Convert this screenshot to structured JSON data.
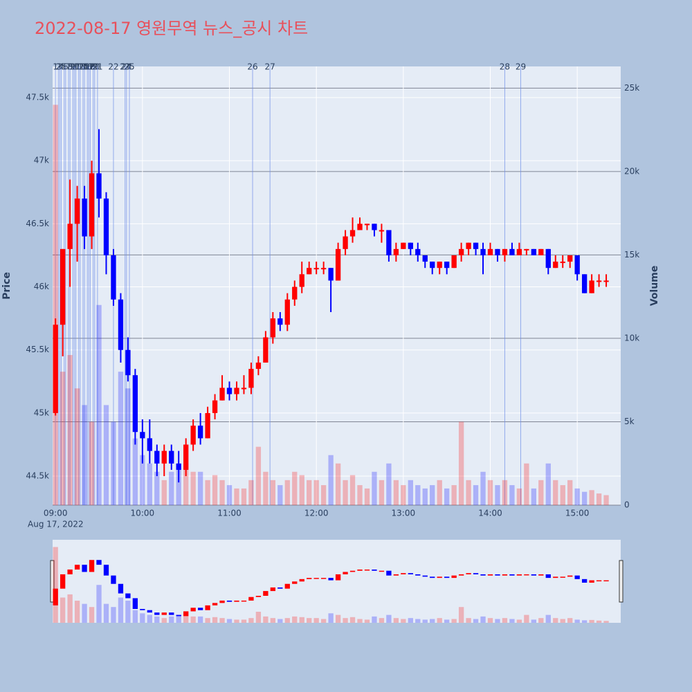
{
  "chart_data": {
    "type": "candlestick",
    "title": "2022-08-17 영원무역 뉴스_공시 차트",
    "y_title": "Price",
    "y2_title": "Volume",
    "x_date_label": "Aug 17, 2022",
    "xlim": [
      "08:58",
      "15:30"
    ],
    "xticks": [
      "09:00",
      "10:00",
      "11:00",
      "12:00",
      "13:00",
      "14:00",
      "15:00"
    ],
    "ylim": [
      44270,
      47747
    ],
    "yticks": [
      {
        "value": 44500,
        "label": "44.5k"
      },
      {
        "value": 45000,
        "label": "45k"
      },
      {
        "value": 45500,
        "label": "45.5k"
      },
      {
        "value": 46000,
        "label": "46k"
      },
      {
        "value": 46500,
        "label": "46.5k"
      },
      {
        "value": 47000,
        "label": "47k"
      },
      {
        "value": 47500,
        "label": "47.5k"
      }
    ],
    "y2lim": [
      0,
      26300
    ],
    "y2ticks": [
      0,
      {
        "value": 5000,
        "label": "5k"
      },
      {
        "value": 10000,
        "label": "10k"
      },
      {
        "value": 15000,
        "label": "15k"
      },
      {
        "value": 20000,
        "label": "20k"
      },
      {
        "value": 25000,
        "label": "25k"
      }
    ],
    "up_color": "#ff0000",
    "down_color": "#0000ff",
    "x": [
      "09:00",
      "09:05",
      "09:10",
      "09:15",
      "09:20",
      "09:25",
      "09:30",
      "09:35",
      "09:40",
      "09:45",
      "09:50",
      "09:55",
      "10:00",
      "10:05",
      "10:10",
      "10:15",
      "10:20",
      "10:25",
      "10:30",
      "10:35",
      "10:40",
      "10:45",
      "10:50",
      "10:55",
      "11:00",
      "11:05",
      "11:10",
      "11:15",
      "11:20",
      "11:25",
      "11:30",
      "11:35",
      "11:40",
      "11:45",
      "11:50",
      "11:55",
      "12:00",
      "12:05",
      "12:10",
      "12:15",
      "12:20",
      "12:25",
      "12:30",
      "12:35",
      "12:40",
      "12:45",
      "12:50",
      "12:55",
      "13:00",
      "13:05",
      "13:10",
      "13:15",
      "13:20",
      "13:25",
      "13:30",
      "13:35",
      "13:40",
      "13:45",
      "13:50",
      "13:55",
      "14:00",
      "14:05",
      "14:10",
      "14:15",
      "14:20",
      "14:25",
      "14:30",
      "14:35",
      "14:40",
      "14:45",
      "14:50",
      "14:55",
      "15:00",
      "15:05",
      "15:10",
      "15:15",
      "15:20"
    ],
    "open": [
      45000,
      45700,
      46300,
      46500,
      46700,
      46400,
      46900,
      46700,
      46250,
      45900,
      45500,
      45300,
      44850,
      44800,
      44700,
      44600,
      44700,
      44600,
      44550,
      44750,
      44900,
      44800,
      45000,
      45100,
      45200,
      45150,
      45200,
      45200,
      45350,
      45400,
      45600,
      45750,
      45700,
      45900,
      46000,
      46100,
      46150,
      46150,
      46150,
      46050,
      46300,
      46400,
      46450,
      46500,
      46500,
      46450,
      46450,
      46250,
      46300,
      46350,
      46300,
      46250,
      46200,
      46150,
      46200,
      46150,
      46250,
      46300,
      46350,
      46300,
      46250,
      46300,
      46250,
      46300,
      46250,
      46300,
      46300,
      46250,
      46300,
      46150,
      46200,
      46200,
      46250,
      46100,
      45950,
      46050,
      46050
    ],
    "high": [
      45750,
      46300,
      46850,
      46800,
      46800,
      47000,
      47250,
      46750,
      46300,
      45950,
      45600,
      45350,
      44950,
      44950,
      44750,
      44750,
      44750,
      44700,
      44800,
      44950,
      45000,
      45050,
      45150,
      45300,
      45250,
      45250,
      45300,
      45400,
      45450,
      45650,
      45800,
      45800,
      45950,
      46050,
      46200,
      46200,
      46200,
      46200,
      46150,
      46350,
      46450,
      46550,
      46550,
      46500,
      46500,
      46500,
      46450,
      46350,
      46350,
      46350,
      46350,
      46250,
      46200,
      46200,
      46200,
      46250,
      46350,
      46350,
      46350,
      46350,
      46350,
      46300,
      46300,
      46350,
      46350,
      46300,
      46300,
      46300,
      46300,
      46250,
      46250,
      46250,
      46250,
      46100,
      46100,
      46100,
      46100
    ],
    "low": [
      44980,
      45450,
      46000,
      46200,
      46300,
      46300,
      46550,
      46100,
      45850,
      45400,
      45250,
      44750,
      44600,
      44600,
      44500,
      44500,
      44550,
      44450,
      44500,
      44700,
      44750,
      44800,
      44950,
      45100,
      45100,
      45100,
      45150,
      45150,
      45300,
      45400,
      45550,
      45650,
      45650,
      45850,
      45950,
      46100,
      46100,
      46100,
      45800,
      46050,
      46250,
      46350,
      46450,
      46450,
      46400,
      46350,
      46200,
      46200,
      46300,
      46250,
      46200,
      46150,
      46100,
      46100,
      46100,
      46150,
      46200,
      46250,
      46250,
      46100,
      46250,
      46200,
      46200,
      46250,
      46250,
      46250,
      46250,
      46250,
      46100,
      46150,
      46150,
      46150,
      46050,
      45950,
      45950,
      46000,
      46000
    ],
    "close": [
      45700,
      46300,
      46500,
      46700,
      46400,
      46900,
      46700,
      46250,
      45900,
      45500,
      45300,
      44850,
      44800,
      44700,
      44600,
      44700,
      44600,
      44550,
      44750,
      44900,
      44800,
      45000,
      45100,
      45200,
      45150,
      45200,
      45200,
      45350,
      45400,
      45600,
      45750,
      45700,
      45900,
      46000,
      46100,
      46150,
      46150,
      46150,
      46050,
      46300,
      46400,
      46450,
      46500,
      46500,
      46450,
      46450,
      46250,
      46300,
      46350,
      46300,
      46250,
      46200,
      46150,
      46200,
      46150,
      46250,
      46300,
      46350,
      46300,
      46250,
      46300,
      46250,
      46300,
      46250,
      46300,
      46300,
      46250,
      46300,
      46150,
      46200,
      46200,
      46250,
      46100,
      45950,
      46050,
      46050,
      46050
    ],
    "volume": [
      24000,
      8000,
      9000,
      7000,
      6000,
      5000,
      12000,
      6000,
      5000,
      8000,
      7000,
      4000,
      3000,
      2500,
      2000,
      1500,
      2000,
      2500,
      2500,
      2000,
      2000,
      1500,
      1800,
      1500,
      1200,
      1000,
      1000,
      1500,
      3500,
      2000,
      1500,
      1200,
      1500,
      2000,
      1800,
      1500,
      1500,
      1200,
      3000,
      2500,
      1500,
      1800,
      1200,
      1000,
      2000,
      1500,
      2500,
      1500,
      1200,
      1500,
      1200,
      1000,
      1200,
      1500,
      1000,
      1200,
      5000,
      1500,
      1200,
      2000,
      1500,
      1200,
      1500,
      1200,
      1000,
      2500,
      1000,
      1500,
      2500,
      1500,
      1200,
      1500,
      1000,
      800,
      900,
      700,
      600
    ],
    "news_markers": [
      {
        "label": "1",
        "x": "09:00"
      },
      {
        "label": "2",
        "x": "09:02"
      },
      {
        "label": "3",
        "x": "09:03"
      },
      {
        "label": "4",
        "x": "09:04"
      },
      {
        "label": "5",
        "x": "09:06"
      },
      {
        "label": "6",
        "x": "09:07"
      },
      {
        "label": "7",
        "x": "09:09"
      },
      {
        "label": "8",
        "x": "09:10"
      },
      {
        "label": "9",
        "x": "09:12"
      },
      {
        "label": "10",
        "x": "09:13"
      },
      {
        "label": "11",
        "x": "09:14"
      },
      {
        "label": "12",
        "x": "09:16"
      },
      {
        "label": "13",
        "x": "09:17"
      },
      {
        "label": "14",
        "x": "09:19"
      },
      {
        "label": "15",
        "x": "09:20"
      },
      {
        "label": "16",
        "x": "09:22"
      },
      {
        "label": "17",
        "x": "09:23"
      },
      {
        "label": "18",
        "x": "09:24"
      },
      {
        "label": "19",
        "x": "09:26"
      },
      {
        "label": "20",
        "x": "09:27"
      },
      {
        "label": "21",
        "x": "09:29"
      },
      {
        "label": "22",
        "x": "09:40"
      },
      {
        "label": "23",
        "x": "09:48"
      },
      {
        "label": "24",
        "x": "09:49"
      },
      {
        "label": "25",
        "x": "09:51"
      },
      {
        "label": "26",
        "x": "11:16"
      },
      {
        "label": "27",
        "x": "11:28"
      },
      {
        "label": "28",
        "x": "14:10"
      },
      {
        "label": "29",
        "x": "14:21"
      }
    ]
  }
}
